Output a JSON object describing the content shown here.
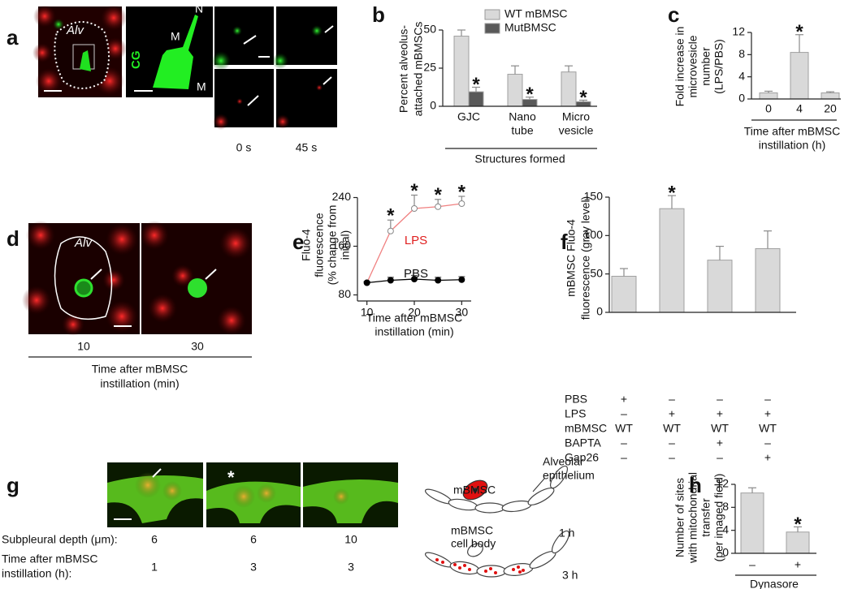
{
  "panel_labels": [
    "a",
    "b",
    "c",
    "d",
    "e",
    "f",
    "g",
    "h"
  ],
  "panel_a": {
    "alv": "Alv",
    "n": "N",
    "m": [
      "M",
      "M"
    ],
    "cg": "CG",
    "times": [
      "0 s",
      "45 s"
    ]
  },
  "panel_d": {
    "alv": "Alv",
    "times": [
      "10",
      "30"
    ],
    "caption": [
      "Time after mBMSC",
      "instillation (min)"
    ]
  },
  "panel_g": {
    "depth_label": "Subpleural depth (μm):",
    "depths": [
      "6",
      "6",
      "10"
    ],
    "time_label": [
      "Time after mBMSC",
      "instillation (h):"
    ],
    "times": [
      "1",
      "3",
      "3"
    ],
    "schematic": {
      "mbmsc": "mBMSC",
      "epithelium": [
        "Alveolar",
        "epithelium"
      ],
      "t1": "1 h",
      "cell_body": [
        "mBMSC",
        "cell body"
      ],
      "t3": "3 h"
    }
  },
  "chart_data": [
    {
      "type": "bar",
      "ylabel": [
        "Percent  alveolus-",
        "attached  mBMSCs"
      ],
      "xlabel": "Structures formed",
      "categories": [
        [
          "GJC"
        ],
        [
          "Nano",
          "tube"
        ],
        [
          "Micro",
          "vesicle"
        ]
      ],
      "series": [
        {
          "name": "WT mBMSC",
          "color": "#d9d9d9",
          "values": [
            46,
            21,
            22.5
          ],
          "errors": [
            4,
            5.5,
            4
          ]
        },
        {
          "name": "MutBMSC",
          "color": "#595959",
          "values": [
            9.5,
            4.5,
            3
          ],
          "errors": [
            3,
            1.5,
            1
          ],
          "sig": [
            "*",
            "*",
            "*"
          ]
        }
      ],
      "ylim": [
        0,
        50
      ],
      "yticks": [
        0,
        25,
        50
      ]
    },
    {
      "type": "bar",
      "ylabel": [
        "Fold increase in",
        "microvesicle",
        "number",
        "(LPS/PBS)"
      ],
      "xlabel": [
        "Time after mBMSC",
        "instillation (h)"
      ],
      "categories": [
        [
          "0"
        ],
        [
          "4"
        ],
        [
          "20"
        ]
      ],
      "values": [
        1.1,
        8.4,
        1.1
      ],
      "errors": [
        0.3,
        3.2,
        0.2
      ],
      "sig": [
        null,
        "*",
        null
      ],
      "color": "#d9d9d9",
      "ylim": [
        0,
        12
      ],
      "yticks": [
        0,
        4,
        8,
        12
      ]
    },
    {
      "type": "line",
      "ylabel": [
        "Fluo-4",
        "fluorescence",
        "(% change from",
        "initial)"
      ],
      "xlabel": [
        "Time after mBMSC",
        "instillation (min)"
      ],
      "x": [
        10,
        15,
        20,
        25,
        30
      ],
      "xlim": [
        8,
        32
      ],
      "xticks": [
        10,
        20,
        30
      ],
      "ylim": [
        70,
        250
      ],
      "yticks": [
        80,
        160,
        240
      ],
      "series": [
        {
          "name": "LPS",
          "color": "#f08080",
          "marker": "open",
          "values": [
            100,
            185,
            222,
            225,
            230
          ],
          "errors": [
            2,
            18,
            22,
            12,
            12
          ],
          "sig": [
            null,
            "*",
            "*",
            "*",
            "*"
          ]
        },
        {
          "name": "PBS",
          "color": "#000000",
          "marker": "filled",
          "values": [
            100,
            104,
            106,
            104,
            105
          ],
          "errors": [
            2,
            5,
            6,
            5,
            5
          ]
        }
      ]
    },
    {
      "type": "bar",
      "ylabel": [
        "mBMSC Fluo-4",
        "fluorescence (gray level)"
      ],
      "values": [
        47,
        135,
        68,
        83
      ],
      "errors": [
        10,
        17,
        18,
        23
      ],
      "sig": [
        null,
        "*",
        null,
        null
      ],
      "color": "#d9d9d9",
      "ylim": [
        0,
        150
      ],
      "yticks": [
        0,
        50,
        100,
        150
      ],
      "table": {
        "rows": [
          {
            "label": "PBS",
            "cells": [
              "+",
              "–",
              "–",
              "–"
            ]
          },
          {
            "label": "LPS",
            "cells": [
              "–",
              "+",
              "+",
              "+"
            ]
          },
          {
            "label": "mBMSC",
            "cells": [
              "WT",
              "WT",
              "WT",
              "WT"
            ]
          },
          {
            "label": "BAPTA",
            "cells": [
              "–",
              "–",
              "+",
              "–"
            ]
          },
          {
            "label": "Gap26",
            "cells": [
              "–",
              "–",
              "–",
              "+"
            ]
          }
        ]
      }
    },
    {
      "type": "bar",
      "ylabel": [
        "Number of sites",
        "with mitochondrial",
        "transfer",
        "(per imaged field)"
      ],
      "xlabel": "Dynasore",
      "categories": [
        [
          "–"
        ],
        [
          "+"
        ]
      ],
      "values": [
        10.5,
        3.7
      ],
      "errors": [
        0.9,
        0.9
      ],
      "sig": [
        null,
        "*"
      ],
      "color": "#d9d9d9",
      "ylim": [
        0,
        12
      ],
      "yticks": [
        0,
        4,
        8,
        12
      ]
    }
  ]
}
